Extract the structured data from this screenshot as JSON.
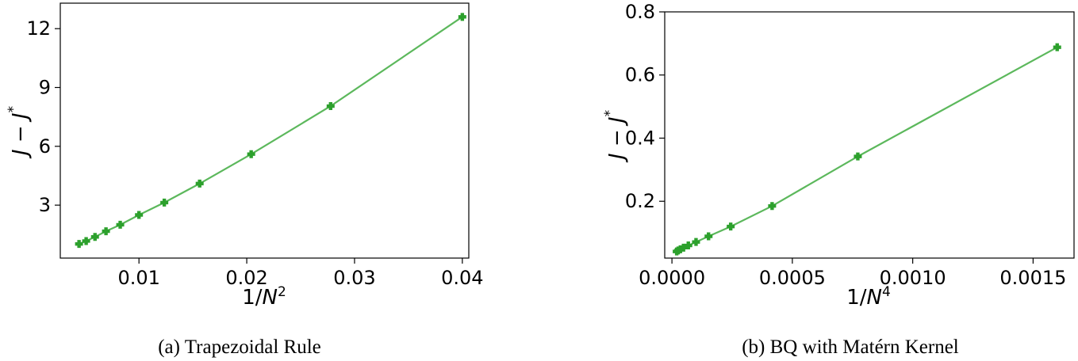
{
  "chart_data": [
    {
      "type": "line",
      "caption": "(a) Trapezoidal Rule",
      "xlabel": "1/N^2",
      "ylabel": "J − J*",
      "xlim": [
        0.0027,
        0.0406
      ],
      "ylim": [
        0.3,
        13.3
      ],
      "xticks": [
        0.01,
        0.02,
        0.03,
        0.04
      ],
      "xtick_labels": [
        "0.01",
        "0.02",
        "0.03",
        "0.04"
      ],
      "yticks": [
        3,
        6,
        9,
        12
      ],
      "ytick_labels": [
        "3",
        "6",
        "9",
        "12"
      ],
      "grid": false,
      "series": [
        {
          "color": "#2ca02c",
          "line_color": "#5cb85c",
          "marker": "plus",
          "x": [
            0.00444,
            0.0051,
            0.00592,
            0.00694,
            0.00826,
            0.01,
            0.01235,
            0.01563,
            0.02041,
            0.02778,
            0.04
          ],
          "y": [
            1.02,
            1.17,
            1.38,
            1.67,
            2.0,
            2.5,
            3.13,
            4.1,
            5.6,
            8.05,
            12.6
          ]
        }
      ]
    },
    {
      "type": "line",
      "caption": "(b) BQ with Matérn Kernel",
      "xlabel": "1/N^4",
      "ylabel": "J − J*",
      "xlim": [
        -3e-05,
        0.00167
      ],
      "ylim": [
        0.02,
        0.8
      ],
      "xticks": [
        0.0,
        0.0005,
        0.001,
        0.0015
      ],
      "xtick_labels": [
        "0.0000",
        "0.0005",
        "0.0010",
        "0.0015"
      ],
      "yticks": [
        0.2,
        0.4,
        0.6,
        0.8
      ],
      "ytick_labels": [
        "0.2",
        "0.4",
        "0.6",
        "0.8"
      ],
      "grid": false,
      "series": [
        {
          "color": "#2ca02c",
          "line_color": "#5cb85c",
          "marker": "plus",
          "x": [
            1.97e-05,
            2.6e-05,
            3.5e-05,
            4.8e-05,
            6.8e-05,
            0.0001,
            0.000152,
            0.000244,
            0.000416,
            0.000772,
            0.0016
          ],
          "y": [
            0.041,
            0.044,
            0.048,
            0.053,
            0.06,
            0.071,
            0.089,
            0.12,
            0.185,
            0.342,
            0.688
          ]
        }
      ]
    }
  ]
}
